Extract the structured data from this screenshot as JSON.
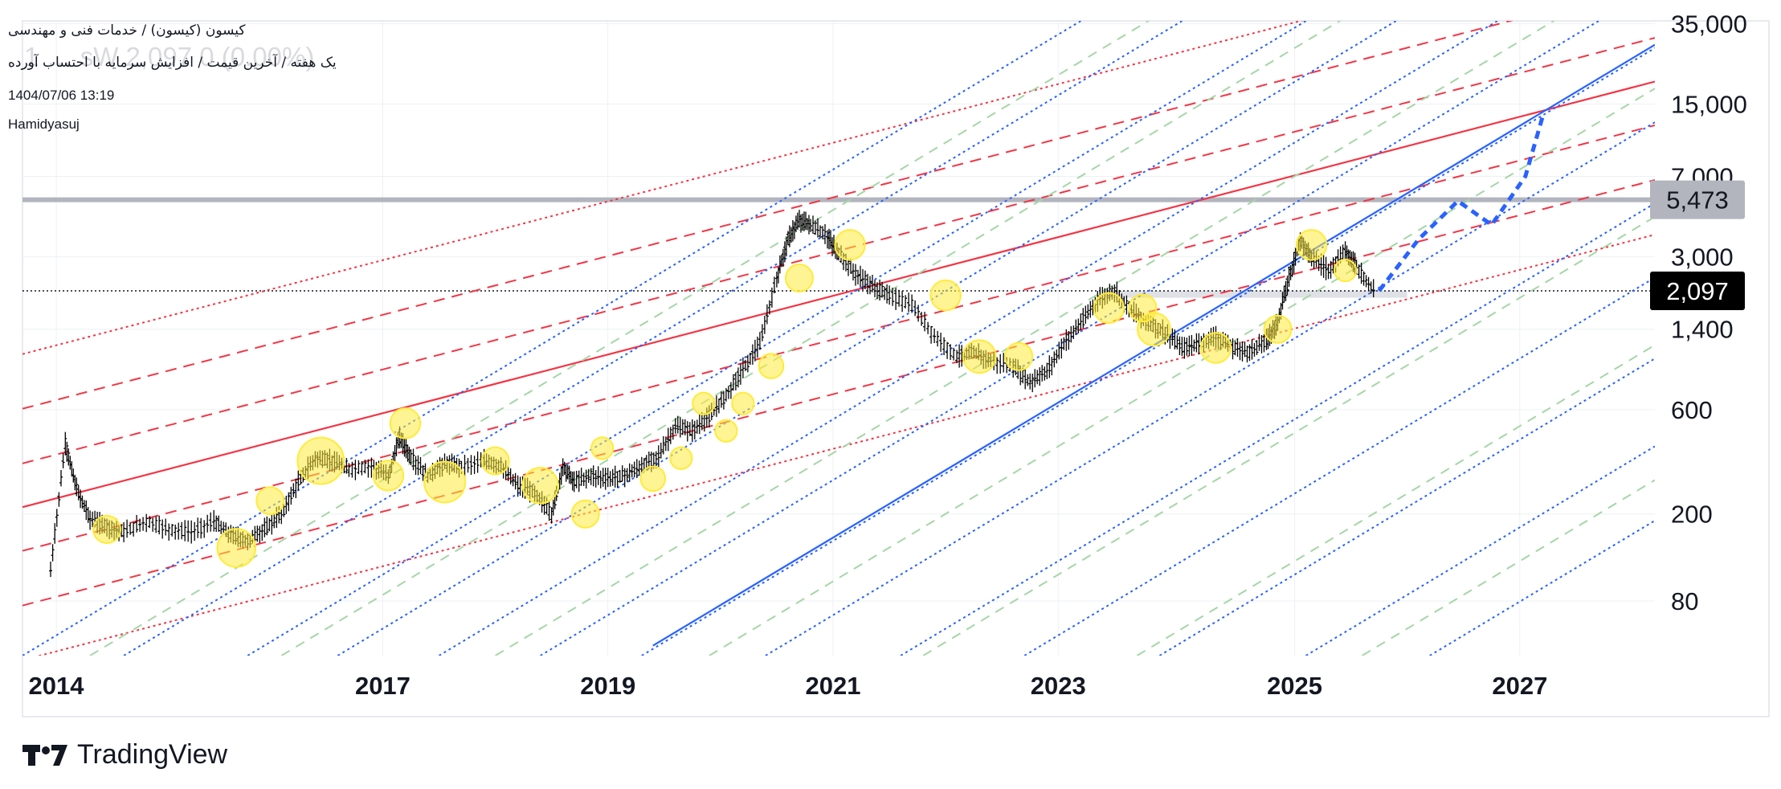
{
  "header": {
    "symbol_line": "کیسون (کیسون) / خدمات فنی و مهندسی",
    "ghost_price": "1 … sW 2,097 0 (0.00%)",
    "idea_title": "یک هفته / آخرین قیمت / افزایش سرمایه با احتساب آورده",
    "date_time": "1404/07/06 13:19",
    "author": "Hamidyasuj"
  },
  "brand": {
    "name": "TradingView",
    "logo_icon": "tradingview-logo-icon"
  },
  "colors": {
    "price_bar": "#000000",
    "red_channel": "#f23645",
    "blue_channel": "#2962ff",
    "green_channel": "#a5d6a7",
    "highlight": "#ffeb3b",
    "resistance_line": "#b2b5be",
    "current_label_bg": "#000000"
  },
  "chart_data": {
    "type": "line",
    "y_scale": "log",
    "ylim": [
      45,
      36000
    ],
    "xlim": [
      2013.7,
      2028.2
    ],
    "x_ticks": [
      "2014",
      "2017",
      "2019",
      "2021",
      "2023",
      "2025",
      "2027"
    ],
    "x_tick_values": [
      2014.0,
      2016.9,
      2018.9,
      2020.9,
      2022.9,
      2025.0,
      2027.0
    ],
    "y_ticks": [
      "35,000",
      "15,000",
      "7,000",
      "3,000",
      "1,400",
      "600",
      "200",
      "80"
    ],
    "y_tick_values": [
      35000,
      15000,
      7000,
      3000,
      1400,
      600,
      200,
      80
    ],
    "grid": true,
    "price_labels": [
      {
        "text": "5,473",
        "value": 5473,
        "style": "gray"
      },
      {
        "text": "2,097",
        "value": 2097,
        "style": "black"
      }
    ],
    "series": [
      {
        "type": "weekly-bars",
        "x": [
          2013.95,
          2014.08,
          2014.18,
          2014.3,
          2014.45,
          2014.6,
          2014.8,
          2015.0,
          2015.2,
          2015.4,
          2015.55,
          2015.7,
          2015.85,
          2016.0,
          2016.15,
          2016.3,
          2016.45,
          2016.6,
          2016.8,
          2016.95,
          2017.05,
          2017.15,
          2017.3,
          2017.45,
          2017.6,
          2017.8,
          2017.95,
          2018.1,
          2018.25,
          2018.4,
          2018.5,
          2018.6,
          2018.75,
          2018.9,
          2019.05,
          2019.2,
          2019.35,
          2019.5,
          2019.65,
          2019.8,
          2019.95,
          2020.1,
          2020.25,
          2020.4,
          2020.5,
          2020.6,
          2020.7,
          2020.85,
          2020.95,
          2021.1,
          2021.25,
          2021.4,
          2021.6,
          2021.8,
          2022.0,
          2022.15,
          2022.3,
          2022.5,
          2022.65,
          2022.8,
          2022.95,
          2023.1,
          2023.25,
          2023.4,
          2023.55,
          2023.7,
          2023.85,
          2024.0,
          2024.15,
          2024.3,
          2024.45,
          2024.6,
          2024.75,
          2024.85,
          2024.95,
          2025.05,
          2025.15,
          2025.3,
          2025.45,
          2025.55,
          2025.7
        ],
        "values": [
          110,
          420,
          260,
          190,
          175,
          165,
          185,
          170,
          165,
          185,
          160,
          150,
          170,
          200,
          280,
          360,
          350,
          320,
          330,
          300,
          450,
          360,
          300,
          340,
          330,
          350,
          330,
          270,
          250,
          200,
          330,
          280,
          300,
          290,
          300,
          330,
          370,
          500,
          480,
          560,
          700,
          920,
          1200,
          2400,
          3600,
          4400,
          4200,
          3700,
          3100,
          2500,
          2200,
          2000,
          1800,
          1300,
          1050,
          1100,
          1000,
          940,
          800,
          900,
          1200,
          1500,
          1900,
          2100,
          1700,
          1500,
          1350,
          1150,
          1200,
          1300,
          1150,
          1100,
          1250,
          1500,
          2400,
          3600,
          3000,
          2600,
          3200,
          2700,
          2097
        ]
      },
      {
        "type": "projection",
        "x": [
          2025.75,
          2026.1,
          2026.45,
          2026.75,
          2027.05,
          2027.2
        ],
        "values": [
          2097,
          3600,
          5400,
          4200,
          7000,
          13000
        ]
      }
    ],
    "highlight_circles": {
      "x": [
        2014.45,
        2015.6,
        2015.9,
        2016.35,
        2016.95,
        2017.1,
        2017.45,
        2017.9,
        2018.3,
        2018.7,
        2018.85,
        2019.3,
        2019.55,
        2019.75,
        2019.95,
        2020.1,
        2020.35,
        2020.6,
        2021.05,
        2021.9,
        2022.2,
        2022.55,
        2023.35,
        2023.65,
        2023.75,
        2024.3,
        2024.85,
        2025.15,
        2025.45
      ],
      "values": [
        170,
        140,
        230,
        350,
        300,
        520,
        280,
        350,
        270,
        200,
        400,
        290,
        360,
        640,
        480,
        640,
        950,
        2400,
        3400,
        2000,
        1050,
        1050,
        1750,
        1750,
        1400,
        1150,
        1400,
        3400,
        2600
      ],
      "sizes": [
        1.0,
        1.4,
        1.0,
        1.7,
        1.1,
        1.1,
        1.5,
        1.0,
        1.3,
        1.0,
        0.8,
        0.9,
        0.8,
        0.8,
        0.8,
        0.8,
        0.9,
        1.0,
        1.1,
        1.1,
        1.2,
        1.0,
        1.1,
        1.0,
        1.2,
        1.1,
        1.0,
        1.1,
        0.8
      ]
    },
    "resistance_zones": [
      {
        "value": 5473,
        "x_start": 2013.7,
        "x_end": 2028.2
      },
      {
        "value_low": 1950,
        "value_high": 2100,
        "x_start": 2023.3,
        "x_end": 2026.0
      }
    ],
    "current_price_line": {
      "value": 2097
    },
    "red_channel": {
      "center": {
        "x": [
          2013.7,
          2028.2
        ],
        "values": [
          215,
          19000
        ]
      },
      "offsets_log10": [
        -0.7,
        -0.45,
        -0.2,
        0.2,
        0.45,
        0.7
      ]
    },
    "blue_channel": {
      "center": {
        "x": [
          2019.3,
          2028.2
        ],
        "values": [
          50,
          28000
        ]
      },
      "dotted_x_intercepts": [
        2013.7,
        2014.6,
        2015.7,
        2016.5,
        2017.4,
        2018.3,
        2019.2,
        2020.3,
        2021.5,
        2022.6,
        2023.8,
        2025.1,
        2026.2
      ],
      "green_dashed_x_intercepts": [
        2014.3,
        2016.0,
        2017.9,
        2019.8,
        2021.7,
        2023.6,
        2025.6
      ]
    }
  }
}
